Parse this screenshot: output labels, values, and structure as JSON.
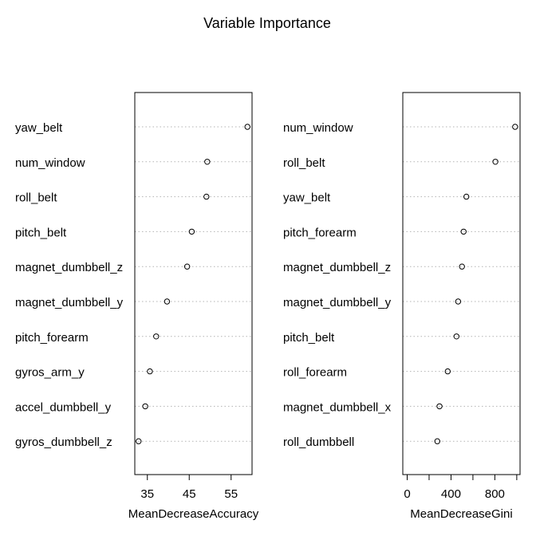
{
  "title": "Variable Importance",
  "chart_data": [
    {
      "type": "scatter",
      "style": "dotchart",
      "xlabel": "MeanDecreaseAccuracy",
      "xlim": [
        32,
        60
      ],
      "xticks": [
        35,
        45,
        55
      ],
      "minor_ticks": [],
      "grid": "dotted horizontal lines",
      "categories": [
        "yaw_belt",
        "num_window",
        "roll_belt",
        "pitch_belt",
        "magnet_dumbbell_z",
        "magnet_dumbbell_y",
        "pitch_forearm",
        "gyros_arm_y",
        "accel_dumbbell_y",
        "gyros_dumbbell_z"
      ],
      "values": [
        58.9,
        49.3,
        49.1,
        45.6,
        44.5,
        39.7,
        37.1,
        35.6,
        34.5,
        32.9
      ]
    },
    {
      "type": "scatter",
      "style": "dotchart",
      "xlabel": "MeanDecreaseGini",
      "xlim": [
        -40,
        1030
      ],
      "xticks": [
        0,
        400,
        800
      ],
      "minor_ticks": [
        200,
        600,
        1000
      ],
      "grid": "dotted horizontal lines",
      "categories": [
        "num_window",
        "roll_belt",
        "yaw_belt",
        "pitch_forearm",
        "magnet_dumbbell_z",
        "magnet_dumbbell_y",
        "pitch_belt",
        "roll_forearm",
        "magnet_dumbbell_x",
        "roll_dumbbell"
      ],
      "values": [
        985,
        805,
        540,
        515,
        500,
        465,
        450,
        370,
        295,
        275
      ]
    }
  ]
}
